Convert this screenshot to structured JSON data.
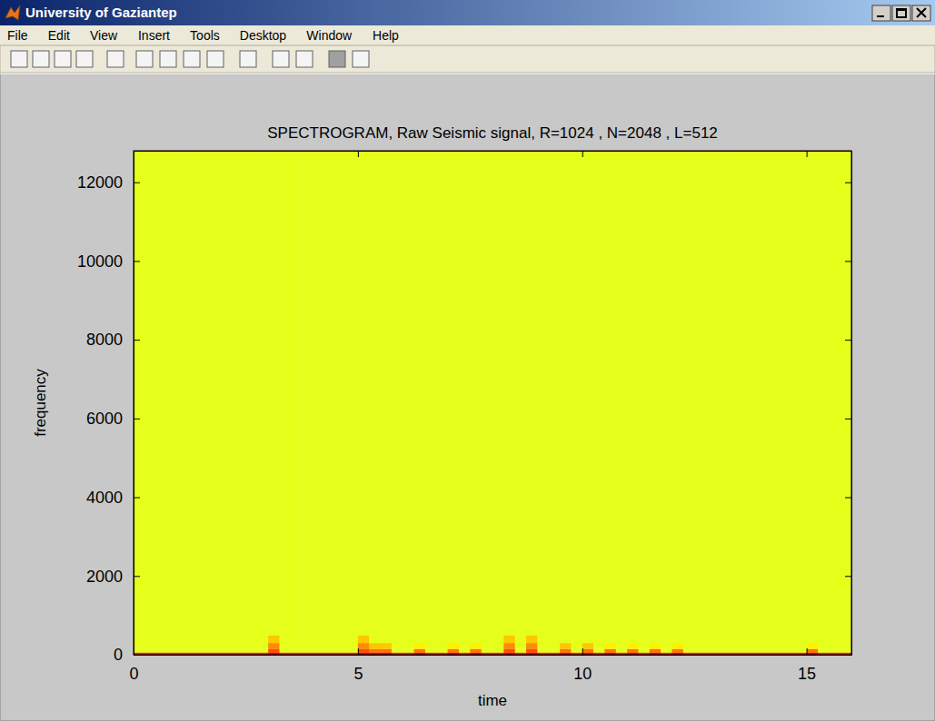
{
  "window": {
    "title": "University of Gaziantep",
    "menu": [
      "File",
      "Edit",
      "View",
      "Insert",
      "Tools",
      "Desktop",
      "Window",
      "Help"
    ]
  },
  "chart_data": {
    "type": "heatmap",
    "title": "SPECTROGRAM, Raw Seismic signal, R=1024 , N=2048 , L=512",
    "x_label": "time",
    "y_label": "frequency",
    "x_edges": [
      0,
      0.25,
      0.5,
      0.75,
      1,
      1.25,
      1.5,
      1.75,
      2,
      2.25,
      2.5,
      2.75,
      3,
      3.25,
      3.5,
      3.75,
      4,
      4.25,
      4.5,
      4.75,
      5,
      5.25,
      5.5,
      5.75,
      6,
      6.25,
      6.5,
      6.75,
      7,
      7.25,
      7.5,
      7.75,
      8,
      8.25,
      8.5,
      8.75,
      9,
      9.25,
      9.5,
      9.75,
      10,
      10.25,
      10.5,
      10.75,
      11,
      11.25,
      11.5,
      11.75,
      12,
      12.25,
      12.5,
      12.75,
      13,
      13.25,
      13.5,
      13.75,
      14,
      14.25,
      14.5,
      14.75,
      15,
      15.25,
      15.5,
      15.75,
      16
    ],
    "y_edges": [
      0,
      60,
      150,
      300,
      500,
      12800
    ],
    "z": [
      [
        24,
        24,
        24,
        24,
        24,
        24,
        24,
        24,
        24,
        24,
        24,
        24,
        30,
        24,
        24,
        24,
        24,
        24,
        24,
        24,
        30,
        30,
        30,
        24,
        24,
        30,
        24,
        24,
        30,
        24,
        30,
        24,
        24,
        30,
        24,
        30,
        24,
        24,
        30,
        24,
        30,
        24,
        30,
        24,
        30,
        24,
        30,
        24,
        30,
        24,
        24,
        24,
        24,
        24,
        24,
        24,
        24,
        24,
        24,
        24,
        30,
        24,
        24,
        24
      ],
      [
        0,
        0,
        0,
        0,
        0,
        0,
        0,
        0,
        0,
        0,
        0,
        0,
        20,
        0,
        0,
        0,
        0,
        0,
        0,
        0,
        20,
        16,
        16,
        0,
        0,
        16,
        0,
        0,
        16,
        0,
        16,
        0,
        0,
        20,
        0,
        20,
        0,
        0,
        16,
        0,
        16,
        0,
        16,
        0,
        16,
        0,
        16,
        0,
        16,
        0,
        0,
        0,
        0,
        0,
        0,
        0,
        0,
        0,
        0,
        0,
        16,
        0,
        0,
        0
      ],
      [
        0,
        0,
        0,
        0,
        0,
        0,
        0,
        0,
        0,
        0,
        0,
        0,
        14,
        0,
        0,
        0,
        0,
        0,
        0,
        0,
        14,
        8,
        8,
        0,
        0,
        4,
        0,
        0,
        4,
        0,
        4,
        0,
        0,
        14,
        0,
        14,
        0,
        0,
        8,
        0,
        8,
        0,
        4,
        0,
        4,
        0,
        4,
        0,
        4,
        0,
        0,
        0,
        0,
        0,
        0,
        0,
        0,
        0,
        0,
        0,
        4,
        0,
        0,
        0
      ],
      [
        0,
        0,
        0,
        0,
        0,
        0,
        0,
        0,
        0,
        0,
        0,
        0,
        8,
        0,
        0,
        0,
        0,
        0,
        0,
        0,
        8,
        0,
        0,
        0,
        0,
        0,
        0,
        0,
        0,
        0,
        0,
        0,
        0,
        8,
        0,
        8,
        0,
        0,
        0,
        0,
        0,
        0,
        0,
        0,
        0,
        0,
        0,
        0,
        0,
        0,
        0,
        0,
        0,
        0,
        0,
        0,
        0,
        0,
        0,
        0,
        0,
        0,
        0,
        0
      ],
      [
        0,
        0,
        0,
        0,
        0,
        0,
        0,
        0,
        0,
        0,
        0,
        0,
        0,
        0,
        0,
        0,
        0,
        0,
        0,
        0,
        0,
        0,
        0,
        0,
        0,
        0,
        0,
        0,
        0,
        0,
        0,
        0,
        0,
        0,
        0,
        0,
        0,
        0,
        0,
        0,
        0,
        0,
        0,
        0,
        0,
        0,
        0,
        0,
        0,
        0,
        0,
        0,
        0,
        0,
        0,
        0,
        0,
        0,
        0,
        0,
        0,
        0,
        0,
        0
      ]
    ],
    "xlim": [
      0,
      16
    ],
    "xticks": [
      0,
      5,
      10,
      15
    ],
    "ylim": [
      0,
      12800
    ],
    "yticks": [
      0,
      2000,
      4000,
      6000,
      8000,
      10000,
      12000
    ]
  }
}
